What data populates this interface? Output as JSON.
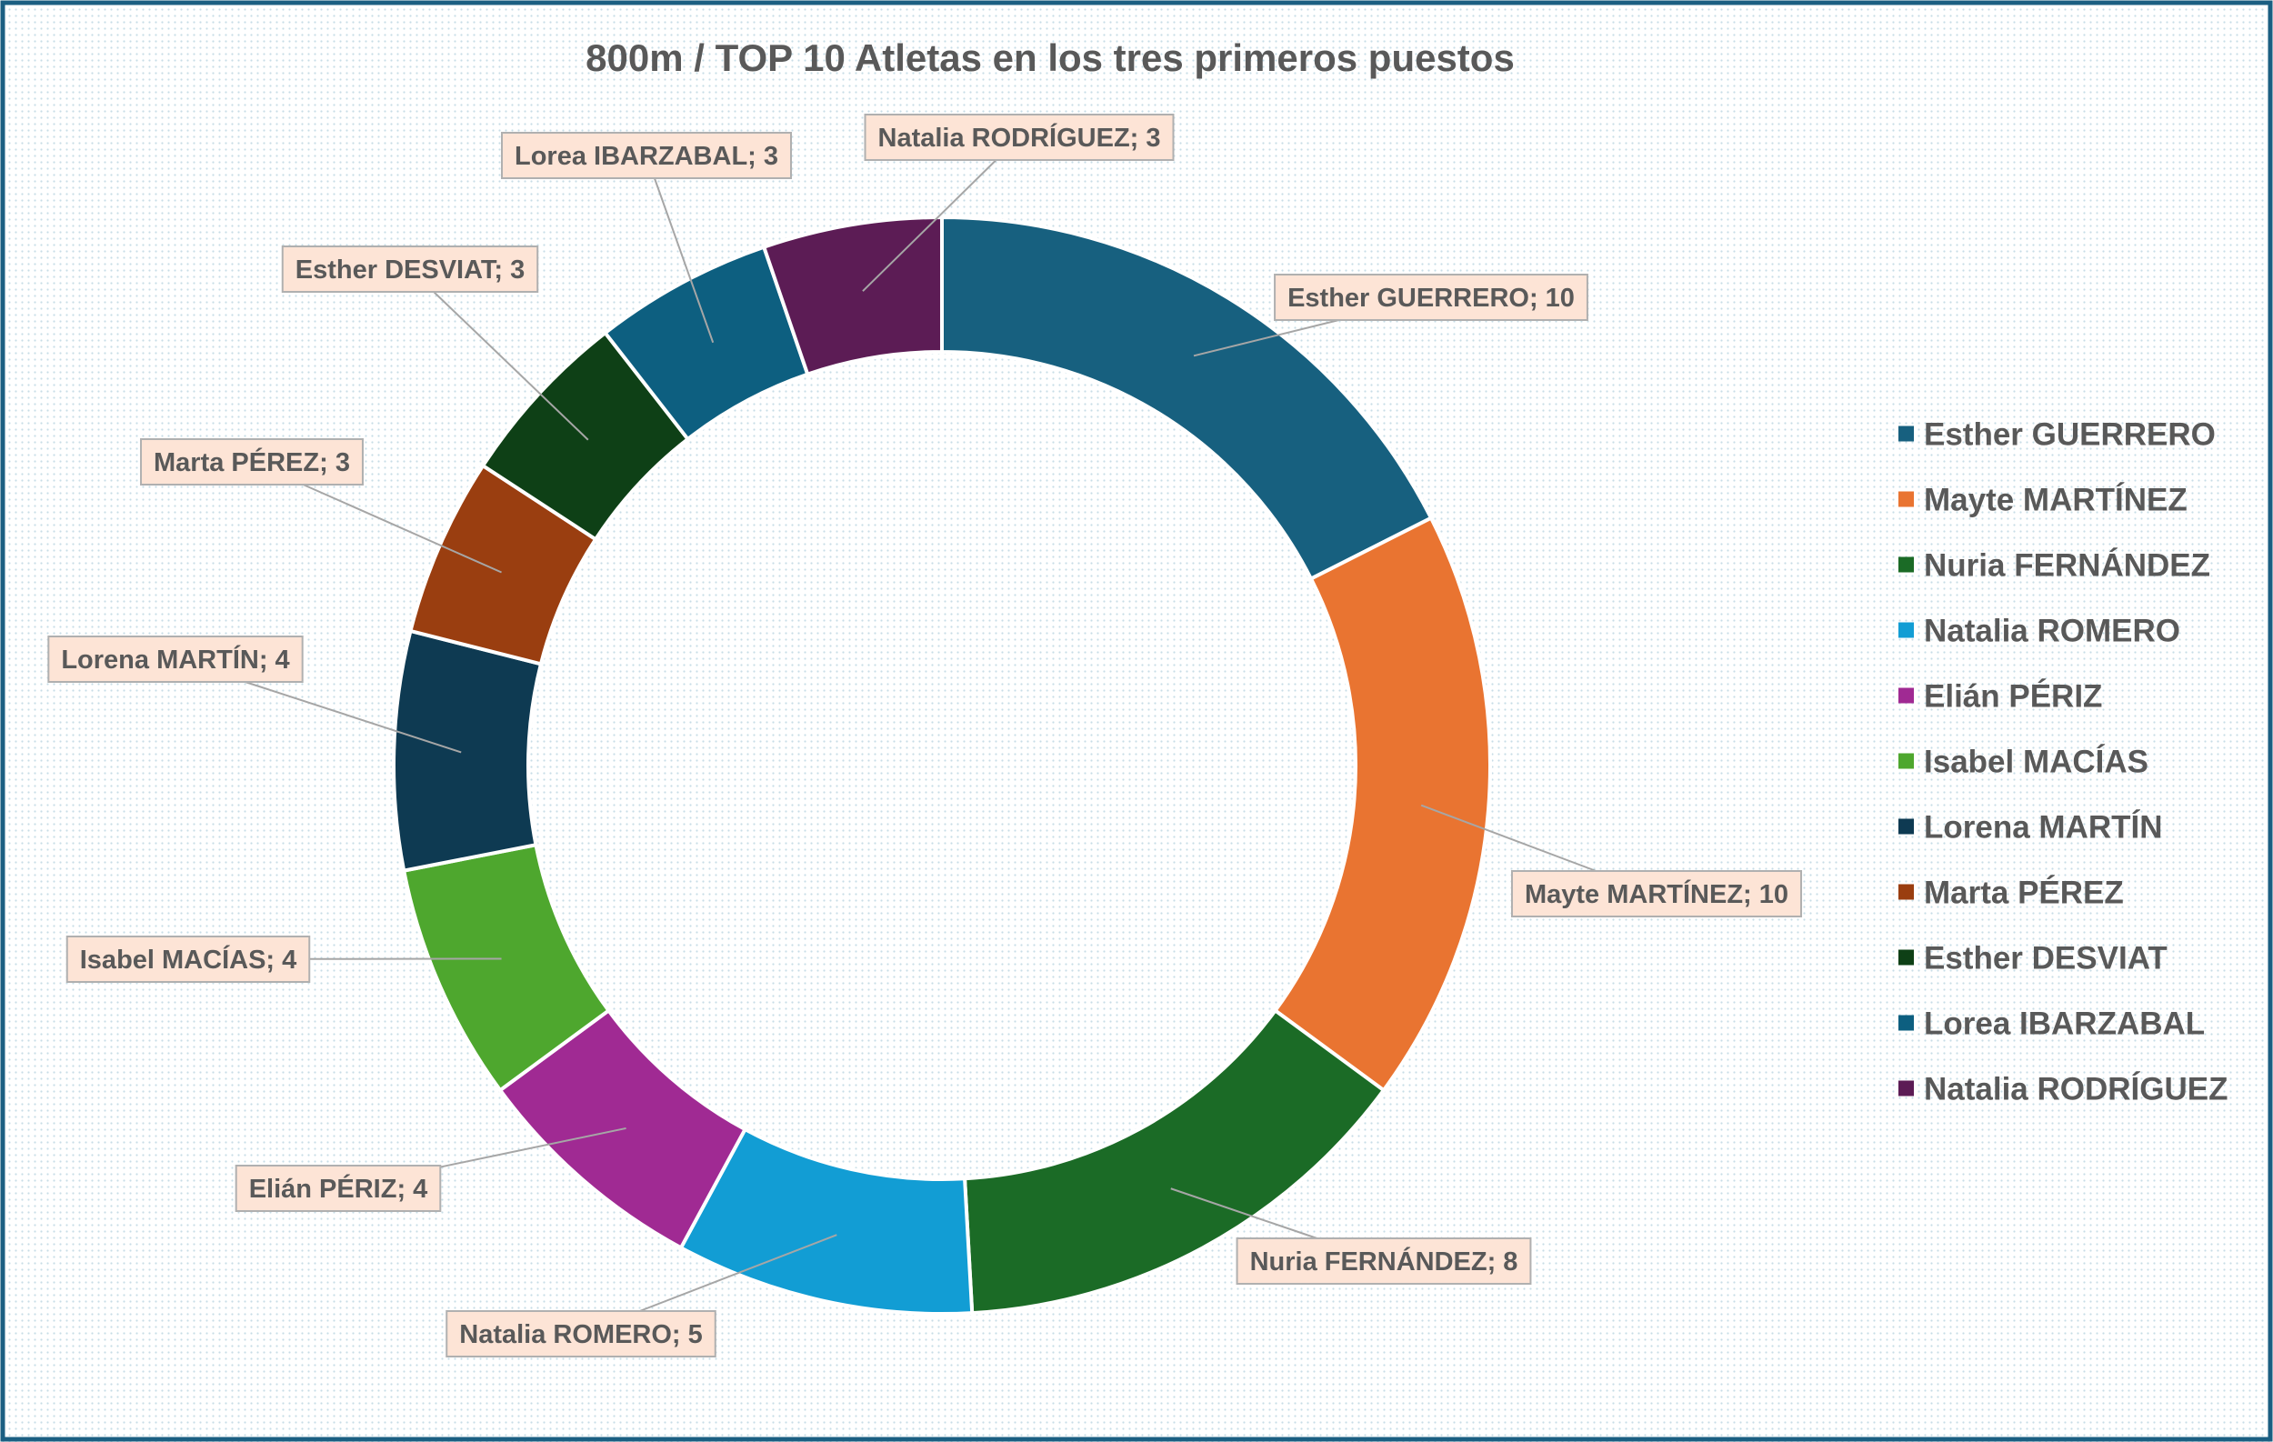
{
  "chart_data": {
    "type": "pie",
    "variant": "doughnut",
    "title": "800m / TOP 10 Atletas en los tres primeros puestos",
    "legend_position": "right",
    "label_separator": "; ",
    "categories": [
      "Esther GUERRERO",
      "Mayte MARTÍNEZ",
      "Nuria FERNÁNDEZ",
      "Natalia ROMERO",
      "Elián PÉRIZ",
      "Isabel MACÍAS",
      "Lorena MARTÍN",
      "Marta PÉREZ",
      "Esther DESVIAT",
      "Lorea IBARZABAL",
      "Natalia RODRÍGUEZ"
    ],
    "values": [
      10,
      10,
      8,
      5,
      4,
      4,
      4,
      3,
      3,
      3,
      3
    ],
    "colors": [
      "#17607f",
      "#e97431",
      "#1b6b26",
      "#129dd4",
      "#a02a93",
      "#4ea72e",
      "#0e3a52",
      "#9a3e10",
      "#0e4016",
      "#0d5f80",
      "#5c1c55"
    ]
  },
  "style": {
    "frame_border": "#1b5f82",
    "background_dots": "#c7dde6",
    "label_fill": "#fde4d6",
    "label_border": "#b0b0b0",
    "leader_color": "#a6a6a6",
    "slice_border": "#ffffff"
  }
}
